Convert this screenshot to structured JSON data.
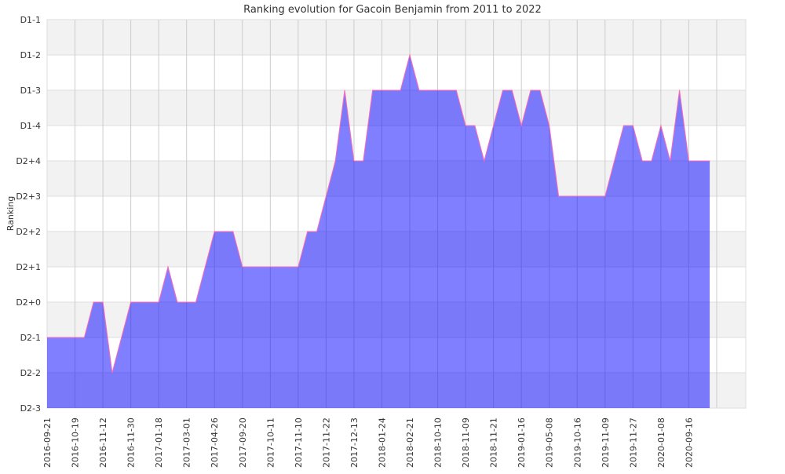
{
  "chart_data": {
    "type": "area",
    "title": "Ranking evolution for Gacoin Benjamin from 2011 to 2022",
    "xlabel": "",
    "ylabel": "Ranking",
    "y_categories": [
      "D2-3",
      "D2-2",
      "D2-1",
      "D2+0",
      "D2+1",
      "D2+2",
      "D2+3",
      "D2+4",
      "D1-4",
      "D1-3",
      "D1-2",
      "D1-1"
    ],
    "x_tick_labels": [
      "2016-09-21",
      "2016-10-19",
      "2016-11-12",
      "2016-11-30",
      "2017-01-18",
      "2017-03-01",
      "2017-04-26",
      "2017-09-20",
      "2017-10-11",
      "2017-11-10",
      "2017-11-22",
      "2017-12-13",
      "2018-01-24",
      "2018-02-21",
      "2018-10-10",
      "2018-11-09",
      "2018-11-21",
      "2019-01-16",
      "2019-05-08",
      "2019-10-16",
      "2019-11-09",
      "2019-11-27",
      "2020-01-08",
      "2020-09-16"
    ],
    "x_range": [
      0,
      25
    ],
    "grid": true,
    "legend": "none",
    "colors": {
      "fill": "#8080ff",
      "line": "#ff69b4",
      "band": "#f2f2f2",
      "grid": "#cccccc"
    },
    "series": [
      {
        "name": "Ranking",
        "points": [
          [
            0,
            "D2-1"
          ],
          [
            1.333,
            "D2-1"
          ],
          [
            1.667,
            "D2+0"
          ],
          [
            2,
            "D2+0"
          ],
          [
            2.333,
            "D2-2"
          ],
          [
            3,
            "D2+0"
          ],
          [
            4,
            "D2+0"
          ],
          [
            4.333,
            "D2+1"
          ],
          [
            4.667,
            "D2+0"
          ],
          [
            5.333,
            "D2+0"
          ],
          [
            6,
            "D2+2"
          ],
          [
            6.667,
            "D2+2"
          ],
          [
            7,
            "D2+1"
          ],
          [
            9,
            "D2+1"
          ],
          [
            9.333,
            "D2+2"
          ],
          [
            9.667,
            "D2+2"
          ],
          [
            10.333,
            "D2+4"
          ],
          [
            10.667,
            "D1-3"
          ],
          [
            11,
            "D2+4"
          ],
          [
            11.333,
            "D2+4"
          ],
          [
            11.667,
            "D1-3"
          ],
          [
            12.667,
            "D1-3"
          ],
          [
            13,
            "D1-2"
          ],
          [
            13.333,
            "D1-3"
          ],
          [
            14.667,
            "D1-3"
          ],
          [
            15,
            "D1-4"
          ],
          [
            15.333,
            "D1-4"
          ],
          [
            15.667,
            "D2+4"
          ],
          [
            16.333,
            "D1-3"
          ],
          [
            16.667,
            "D1-3"
          ],
          [
            17,
            "D1-4"
          ],
          [
            17.333,
            "D1-3"
          ],
          [
            17.667,
            "D1-3"
          ],
          [
            18,
            "D1-4"
          ],
          [
            18.333,
            "D2+3"
          ],
          [
            20,
            "D2+3"
          ],
          [
            20.667,
            "D1-4"
          ],
          [
            21,
            "D1-4"
          ],
          [
            21.333,
            "D2+4"
          ],
          [
            21.667,
            "D2+4"
          ],
          [
            22,
            "D1-4"
          ],
          [
            22.333,
            "D2+4"
          ],
          [
            22.667,
            "D1-3"
          ],
          [
            23,
            "D2+4"
          ],
          [
            23.75,
            "D2+4"
          ]
        ]
      }
    ]
  }
}
